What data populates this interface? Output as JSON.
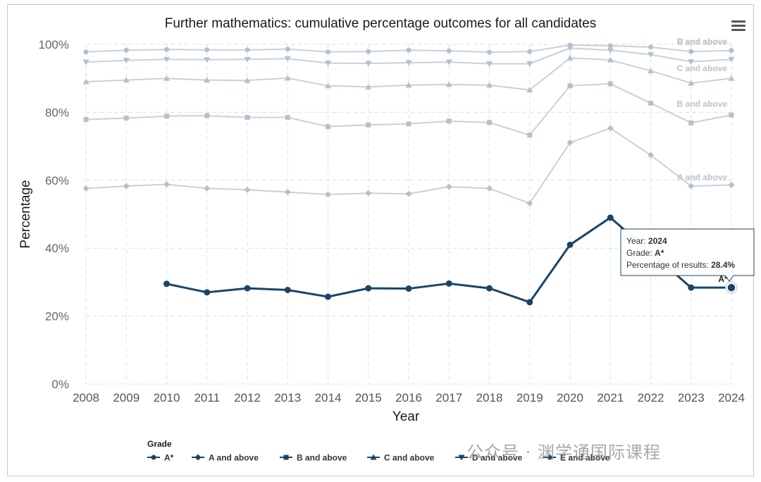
{
  "chart_data": {
    "type": "line",
    "title": "Further mathematics: cumulative percentage outcomes for all candidates",
    "xlabel": "Year",
    "ylabel": "Percentage",
    "ylim": [
      0,
      100
    ],
    "yticks": [
      "0%",
      "20%",
      "40%",
      "60%",
      "80%",
      "100%"
    ],
    "categories": [
      "2008",
      "2009",
      "2010",
      "2011",
      "2012",
      "2013",
      "2014",
      "2015",
      "2016",
      "2017",
      "2018",
      "2019",
      "2020",
      "2021",
      "2022",
      "2023",
      "2024"
    ],
    "grid": true,
    "legend_title": "Grade",
    "legend_position": "bottom",
    "series": [
      {
        "name": "A*",
        "marker": "circle",
        "highlighted": true,
        "end_label": "A*",
        "values": [
          null,
          null,
          29.5,
          27.0,
          28.2,
          27.7,
          25.7,
          28.2,
          28.1,
          29.6,
          28.2,
          24.1,
          41.0,
          49.0,
          null,
          28.4,
          28.4
        ]
      },
      {
        "name": "A and above",
        "marker": "diamond",
        "highlighted": false,
        "end_label": "A and above",
        "values": [
          57.6,
          58.3,
          58.8,
          57.6,
          57.2,
          56.5,
          55.8,
          56.2,
          56.0,
          58.1,
          57.6,
          53.2,
          71.1,
          75.3,
          67.4,
          58.3,
          58.6
        ]
      },
      {
        "name": "B and above",
        "marker": "square",
        "highlighted": false,
        "end_label": "B and above",
        "values": [
          77.9,
          78.3,
          78.9,
          79.0,
          78.5,
          78.5,
          75.8,
          76.3,
          76.6,
          77.4,
          77.0,
          73.3,
          87.8,
          88.4,
          82.7,
          76.9,
          79.2
        ]
      },
      {
        "name": "C and above",
        "marker": "triangle",
        "highlighted": false,
        "end_label": "C and above",
        "values": [
          89.0,
          89.5,
          90.0,
          89.5,
          89.4,
          90.1,
          87.8,
          87.5,
          88.0,
          88.2,
          88.0,
          86.6,
          96.0,
          95.4,
          92.2,
          88.6,
          90.0
        ]
      },
      {
        "name": "D and above",
        "marker": "triangle-down",
        "highlighted": false,
        "end_label": "D and above",
        "values": [
          94.8,
          95.3,
          95.6,
          95.5,
          95.6,
          95.8,
          94.5,
          94.4,
          94.6,
          94.8,
          94.3,
          94.3,
          98.9,
          98.3,
          97.0,
          94.9,
          95.6
        ]
      },
      {
        "name": "E and above",
        "marker": "circle",
        "highlighted": false,
        "end_label": "E and above",
        "values": [
          97.8,
          98.3,
          98.5,
          98.4,
          98.4,
          98.6,
          97.8,
          97.9,
          98.3,
          98.1,
          97.7,
          97.9,
          99.8,
          99.6,
          99.2,
          97.9,
          98.2
        ]
      }
    ],
    "tooltip": {
      "year_label": "Year:",
      "year_value": "2024",
      "grade_label": "Grade:",
      "grade_value": "A*",
      "pct_label": "Percentage of results:",
      "pct_value": "28.4%"
    },
    "colors": {
      "highlight": "#1b4567",
      "faded": "#c7d1dc",
      "faded_marker": "#b4c0cd",
      "end_label": "#b9c2cb",
      "grid": "#e0e0e0",
      "tooltip_border": "#1b4567"
    }
  },
  "watermark": "公众号 · 渊学通国际课程"
}
